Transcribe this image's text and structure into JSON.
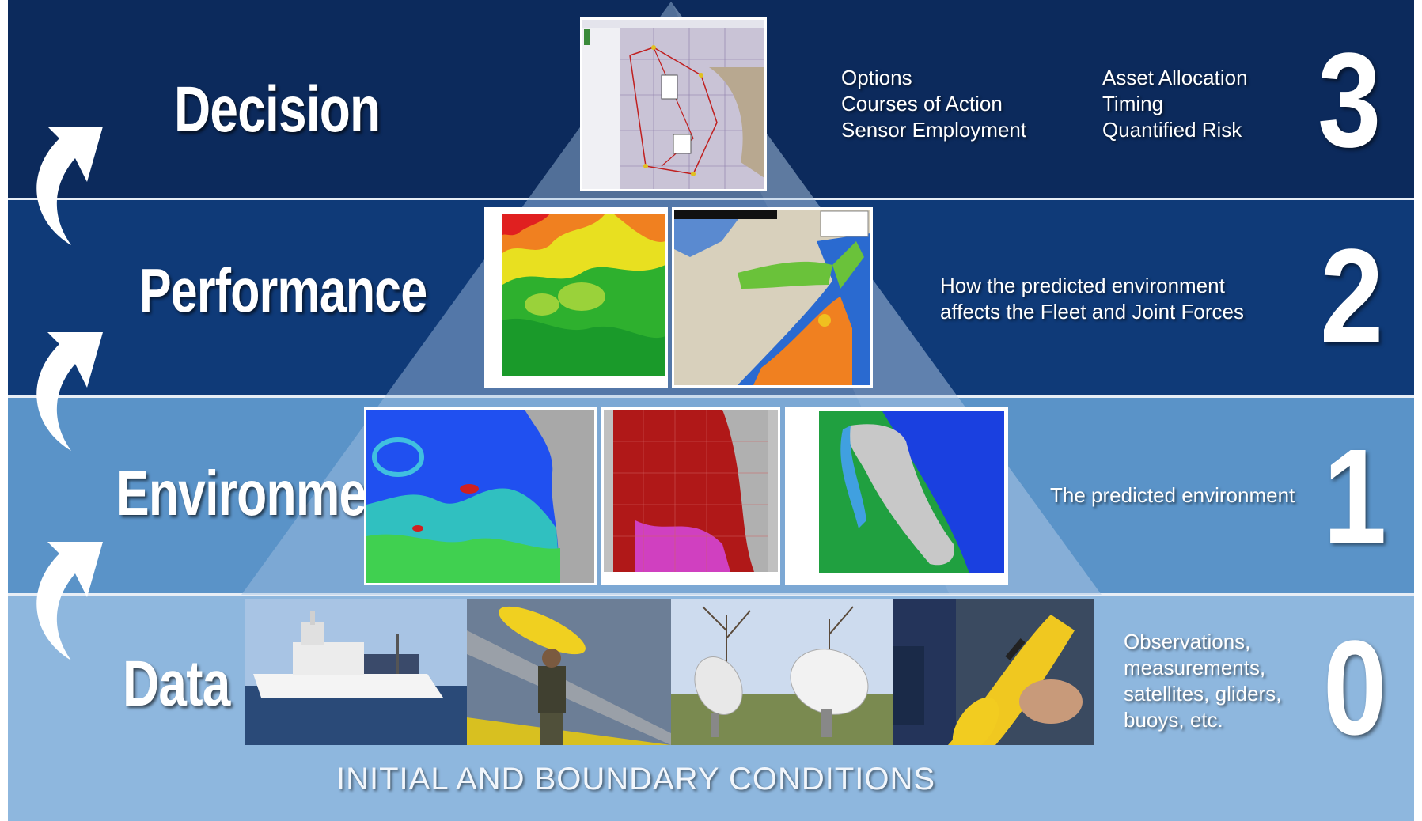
{
  "levels": [
    {
      "number": "3",
      "name": "Decision",
      "description_left": [
        "Options",
        "Courses of Action",
        "Sensor Employment"
      ],
      "description_right": [
        "Asset Allocation",
        "Timing",
        "Quantified Risk"
      ]
    },
    {
      "number": "2",
      "name": "Performance",
      "description": [
        "How the predicted environment",
        "affects the Fleet and Joint Forces"
      ]
    },
    {
      "number": "1",
      "name": "Environment",
      "description": [
        "The predicted environment"
      ]
    },
    {
      "number": "0",
      "name": "Data",
      "description": [
        "Observations,",
        "measurements,",
        "satellites, gliders,",
        "buoys, etc."
      ]
    }
  ],
  "footer": {
    "caption": "INITIAL AND BOUNDARY CONDITIONS"
  },
  "images": {
    "decision": [
      "mission-planning-map-screenshot"
    ],
    "performance": [
      "probability-heatmap-map",
      "horn-of-africa-risk-map"
    ],
    "environment": [
      "pacific-coast-ocean-model-map",
      "sea-surface-temperature-map",
      "coastal-current-vector-map"
    ],
    "data": [
      "research-vessel-photo",
      "glider-launch-photo",
      "satellite-dishes-photo",
      "yellow-glider-photo"
    ]
  },
  "colors": {
    "band_3": "#0c2a5c",
    "band_2": "#0f3a78",
    "band_1": "#5a93c8",
    "band_0": "#8eb7de",
    "pyramid": "#a7c3e3"
  }
}
